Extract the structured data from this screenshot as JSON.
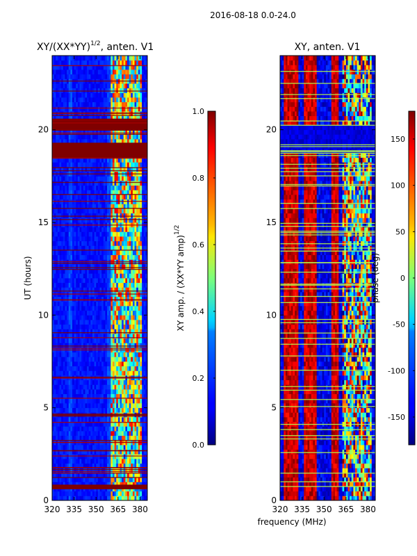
{
  "chart_data": [
    {
      "type": "heatmap",
      "title": "XY/(XX*YY)",
      "title_exp": "1/2",
      "title_tail": ", anten. V1",
      "xlabel": "",
      "ylabel": "UT (hours)",
      "xlim": [
        320,
        385
      ],
      "ylim": [
        0,
        24
      ],
      "xticks": [
        "320",
        "335",
        "350",
        "365",
        "380"
      ],
      "yticks": [
        "0",
        "5",
        "10",
        "15",
        "20"
      ],
      "colorbar": {
        "label": "XY amp. / (XX*YY amp)",
        "label_exp": "1/2",
        "range": [
          0.0,
          1.0
        ],
        "ticks": [
          "0.0",
          "0.2",
          "0.4",
          "0.6",
          "0.8",
          "1.0"
        ]
      },
      "saturated_hour_bands": [
        [
          0.6,
          0.85
        ],
        [
          18.45,
          19.3
        ],
        [
          19.95,
          20.6
        ]
      ],
      "notes": "mostly low amplitude (~0.1) below 360 MHz; mixed values 360-380 MHz"
    },
    {
      "type": "heatmap",
      "title": "XY, anten. V1",
      "xlabel": "frequency (MHz)",
      "ylabel": "",
      "xlim": [
        320,
        385
      ],
      "ylim": [
        0,
        24
      ],
      "xticks": [
        "320",
        "335",
        "350",
        "365",
        "380"
      ],
      "yticks": [
        "0",
        "5",
        "10",
        "15",
        "20"
      ],
      "colorbar": {
        "label": "phase (deg)",
        "range": [
          -180,
          180
        ],
        "ticks": [
          "-150",
          "-100",
          "-50",
          "0",
          "50",
          "100",
          "150"
        ]
      },
      "notes": "phase near +180 in bands around 322-332, 336-345, 355-360 MHz; near -180 elsewhere; horizontal zero-phase lines"
    }
  ],
  "figure_title": "2016-08-18 0.0-24.0",
  "colors": {
    "min": "#00007f",
    "max": "#7f0000"
  }
}
